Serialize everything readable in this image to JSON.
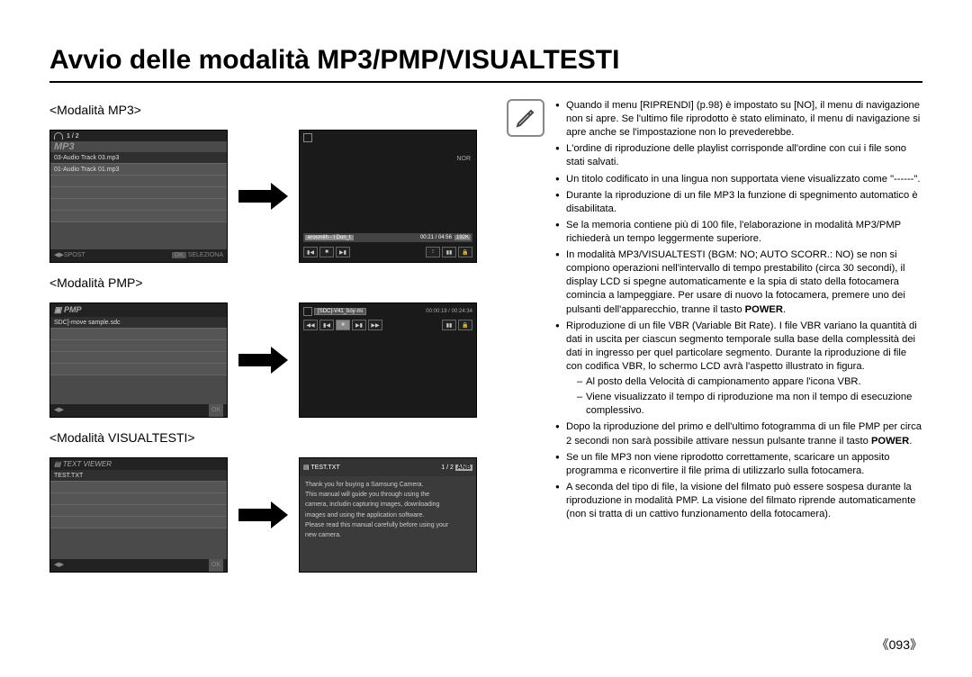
{
  "title": "Avvio delle modalità MP3/PMP/VISUALTESTI",
  "page_number": "093",
  "colors": {
    "text": "#000000",
    "bg": "#ffffff",
    "screen_bg": "#4a4a4a",
    "screen_dark": "#1a1a1a",
    "icon_border": "#888888"
  },
  "modes": {
    "mp3": {
      "label": "<Modalità MP3>",
      "left_screen": {
        "counter": "1 / 2",
        "logo": "MP3",
        "rows": [
          "03-Audio Track 03.mp3",
          "01-Audio Track 01.mp3"
        ],
        "footer_left": "SPOST",
        "footer_ok": "OK",
        "footer_right": "SELEZIONA"
      },
      "right_screen": {
        "track": "erosmith - I Don_t",
        "time": "00:21 / 04:56",
        "bitrate": "192K",
        "nor_label": "NOR"
      }
    },
    "pmp": {
      "label": "<Modalità PMP>",
      "left_screen": {
        "logo": "PMP",
        "row": "SDC]-move sample.sdc",
        "footer_ok": "OK"
      },
      "right_screen": {
        "file": "[SDC]-V41_boy-mi",
        "time": "00:00:19 / 00:24:34"
      }
    },
    "text": {
      "label": "<Modalità VISUALTESTI>",
      "left_screen": {
        "logo": "TEXT VIEWER",
        "row": "TEST.TXT",
        "footer_ok": "OK"
      },
      "right_screen": {
        "file": "TEST.TXT",
        "page": "1 / 2",
        "badge": "ANB",
        "lines": [
          "Thank you for buying a Samsung Camera.",
          "This manual will guide you through using the",
          "camera, includin capturing images, downloading",
          "images and using the application software.",
          "Please read this manual carefully before using your",
          "new camera."
        ]
      }
    }
  },
  "notes": [
    {
      "text": "Quando il menu [RIPRENDI] (p.98) è impostato su [NO], il menu di navigazione non si apre. Se l'ultimo file riprodotto è stato eliminato, il menu di navigazione si apre anche se l'impostazione non lo prevederebbe."
    },
    {
      "text": "L'ordine di riproduzione delle playlist corrisponde all'ordine con cui i file sono stati salvati."
    },
    {
      "text": "Un titolo codificato in una lingua non supportata viene visualizzato come \"------\"."
    },
    {
      "text": "Durante la riproduzione di un file MP3 la funzione di spegnimento automatico è disabilitata."
    },
    {
      "text": "Se la memoria contiene più di 100 file, l'elaborazione in modalità MP3/PMP richiederà un tempo leggermente superiore."
    },
    {
      "text": "In modalità MP3/VISUALTESTI (BGM: NO; AUTO SCORR.: NO) se non si compiono operazioni nell'intervallo di tempo prestabilito (circa 30 secondi), il display LCD si spegne automaticamente e la spia di stato della fotocamera comincia a lampeggiare. Per usare di nuovo la fotocamera, premere uno dei pulsanti dell'apparecchio, tranne il tasto ",
      "bold_after": "POWER",
      "tail": "."
    },
    {
      "text": "Riproduzione di un file VBR (Variable Bit Rate). I file VBR variano la quantità di dati in uscita per ciascun segmento temporale sulla base della complessità dei dati in ingresso per quel particolare segmento. Durante la riproduzione di file con codifica VBR, lo schermo LCD avrà l'aspetto illustrato in figura.",
      "sub": [
        "Al posto della Velocità di campionamento appare l'icona VBR.",
        "Viene visualizzato il tempo di riproduzione ma non il tempo di esecuzione complessivo."
      ]
    },
    {
      "text": "Dopo la riproduzione del primo e dell'ultimo fotogramma di un file PMP per circa 2 secondi non sarà possibile attivare nessun pulsante tranne il tasto ",
      "bold_after": "POWER",
      "tail": "."
    },
    {
      "text": "Se un file MP3 non viene riprodotto correttamente, scaricare un apposito programma e riconvertire il file prima di utilizzarlo sulla fotocamera."
    },
    {
      "text": "A seconda del tipo di file, la visione del filmato può essere sospesa durante la riproduzione in modalità PMP. La visione del filmato riprende automaticamente (non si tratta di un cattivo funzionamento della fotocamera)."
    }
  ]
}
